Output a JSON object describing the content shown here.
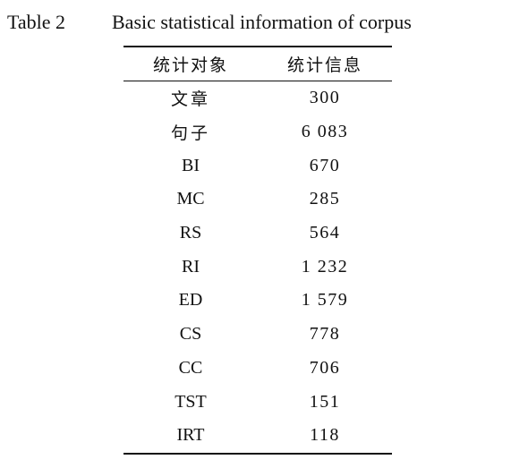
{
  "caption": {
    "label": "Table 2",
    "title": "Basic statistical information of corpus"
  },
  "table": {
    "headers": [
      "统计对象",
      "统计信息"
    ],
    "rows": [
      {
        "item": "文章",
        "value": "300",
        "cn": true
      },
      {
        "item": "句子",
        "value": "6 083",
        "cn": true
      },
      {
        "item": "BI",
        "value": "670",
        "cn": false
      },
      {
        "item": "MC",
        "value": "285",
        "cn": false
      },
      {
        "item": "RS",
        "value": "564",
        "cn": false
      },
      {
        "item": "RI",
        "value": "1 232",
        "cn": false
      },
      {
        "item": "ED",
        "value": "1 579",
        "cn": false
      },
      {
        "item": "CS",
        "value": "778",
        "cn": false
      },
      {
        "item": "CC",
        "value": "706",
        "cn": false
      },
      {
        "item": "TST",
        "value": "151",
        "cn": false
      },
      {
        "item": "IRT",
        "value": "118",
        "cn": false
      }
    ]
  }
}
